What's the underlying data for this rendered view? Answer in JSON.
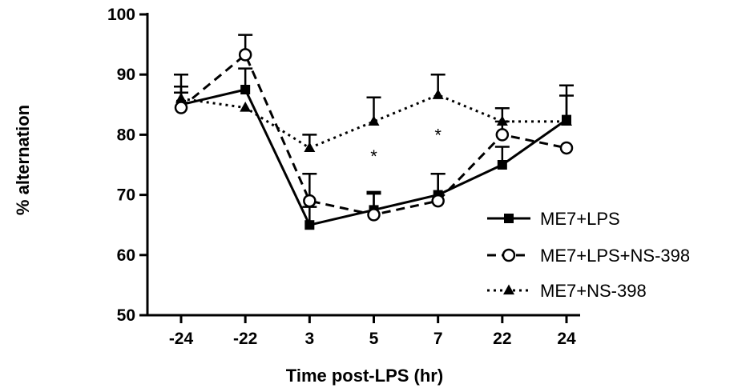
{
  "chart_data": {
    "type": "line",
    "title": "",
    "xlabel": "Time post-LPS (hr)",
    "ylabel": "% alternation",
    "categories": [
      "-24",
      "-22",
      "3",
      "5",
      "7",
      "22",
      "24"
    ],
    "ylim": [
      50,
      100
    ],
    "yticks": [
      50,
      60,
      70,
      80,
      90,
      100
    ],
    "grid": false,
    "legend_position": "right",
    "series": [
      {
        "name": "ME7+LPS",
        "marker": "filled-square",
        "line_style": "solid",
        "values": [
          85.0,
          87.5,
          65.0,
          67.5,
          70.0,
          75.0,
          82.5
        ],
        "error_up": [
          3.0,
          3.5,
          3.0,
          3.0,
          3.5,
          3.0,
          4.0
        ],
        "color": "#000000"
      },
      {
        "name": "ME7+LPS+NS-398",
        "marker": "open-circle",
        "line_style": "dashed",
        "values": [
          84.5,
          93.3,
          69.0,
          66.7,
          69.0,
          80.0,
          77.8
        ],
        "error_up": [
          2.5,
          3.3,
          4.5,
          3.5,
          4.5,
          2.2,
          0
        ],
        "color": "#000000"
      },
      {
        "name": "ME7+NS-398",
        "marker": "filled-triangle",
        "line_style": "dotted",
        "values": [
          86.0,
          84.5,
          77.8,
          82.2,
          86.6,
          82.2,
          82.2
        ],
        "error_up": [
          4.0,
          0,
          2.2,
          4.0,
          3.4,
          2.2,
          6.0
        ],
        "color": "#000000"
      }
    ],
    "annotations": [
      {
        "text": "*",
        "category": "5",
        "y": 77
      },
      {
        "text": "*",
        "category": "7",
        "y": 80.5
      }
    ]
  }
}
